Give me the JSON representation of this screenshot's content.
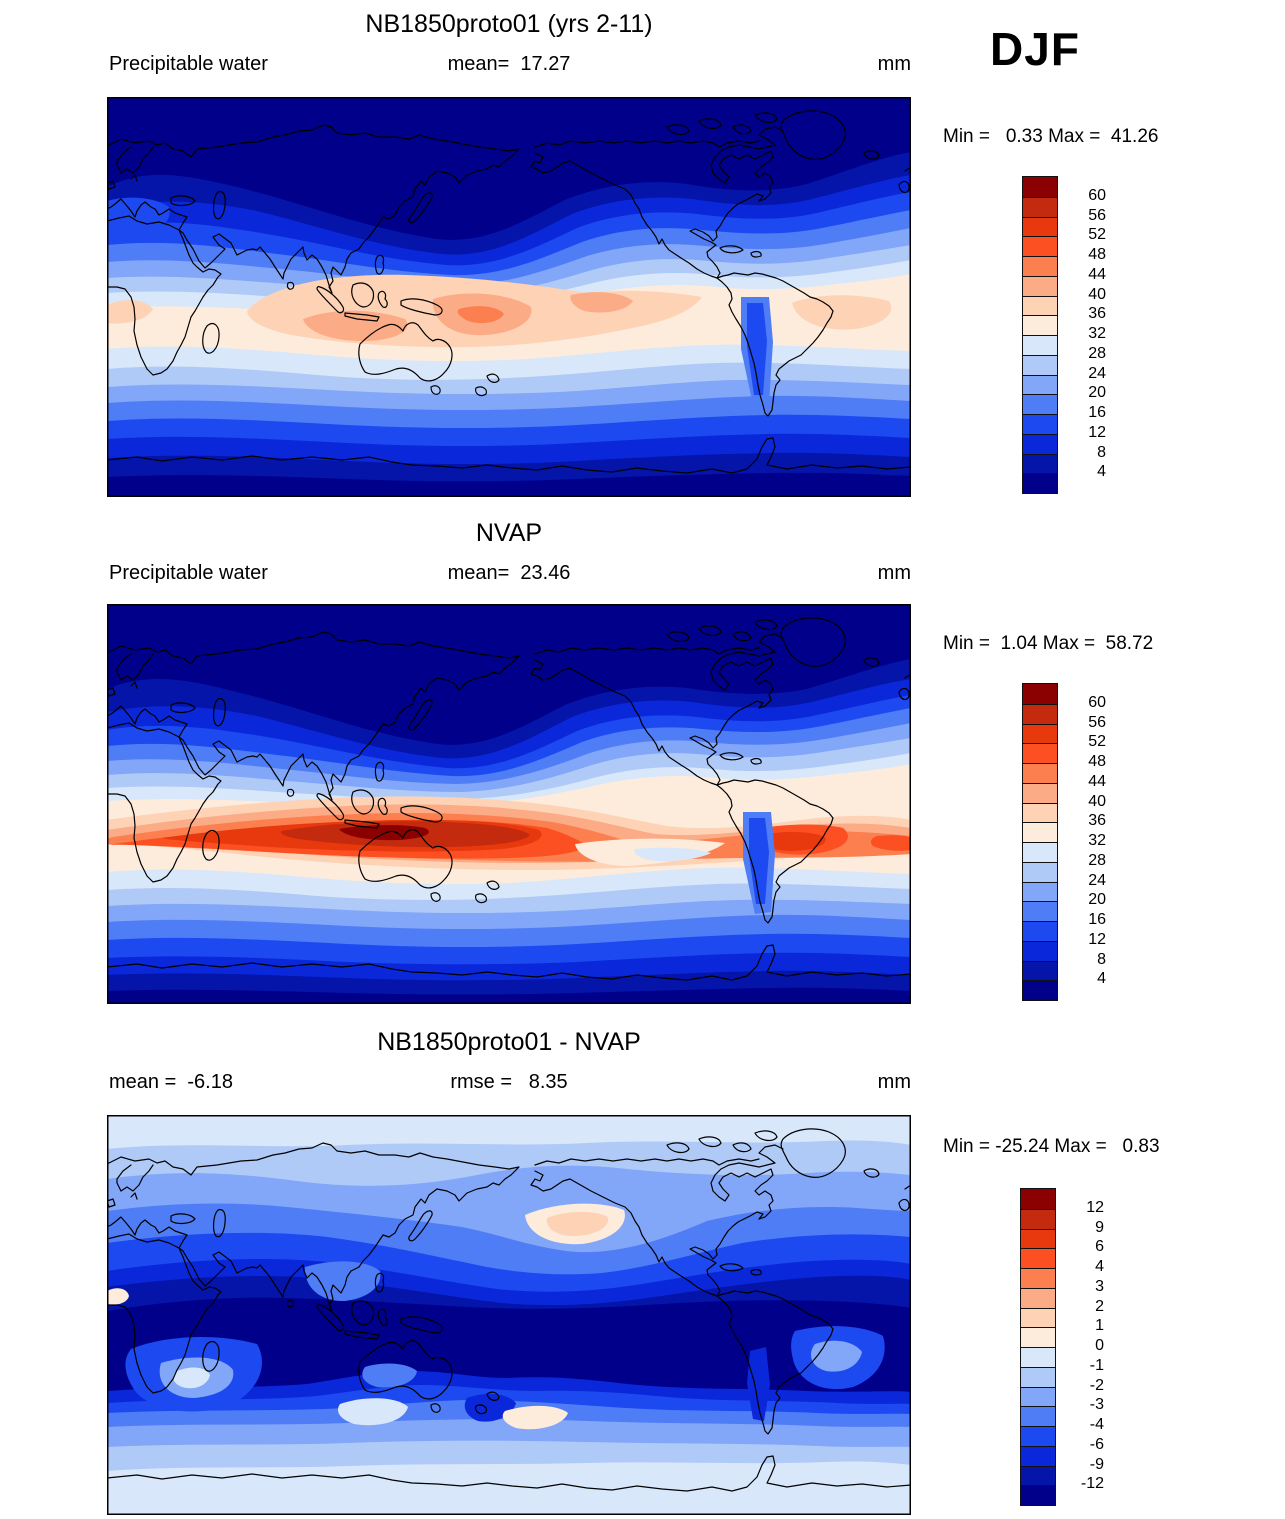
{
  "page": {
    "season": "DJF",
    "units": "mm"
  },
  "panels": [
    {
      "title": "NB1850proto01 (yrs 2-11)",
      "left_label": "Precipitable water",
      "center_label": "mean=  17.27",
      "unit_label": "mm",
      "minmax": "Min =   0.33 Max =  41.26"
    },
    {
      "title": "NVAP",
      "left_label": "Precipitable water",
      "center_label": "mean=  23.46",
      "unit_label": "mm",
      "minmax": "Min =  1.04 Max =  58.72"
    },
    {
      "title": "NB1850proto01 - NVAP",
      "left_label": "mean =  -6.18",
      "center_label": "rmse =   8.35",
      "unit_label": "mm",
      "minmax": "Min = -25.24 Max =   0.83"
    }
  ],
  "palette": {
    "colors": [
      "#8B0000",
      "#C42A0E",
      "#E8380E",
      "#FC4F22",
      "#FC7F50",
      "#FBAB85",
      "#FDD2B5",
      "#FDEBDC",
      "#D8E8FA",
      "#B0CAF8",
      "#82A6F8",
      "#4F7DF5",
      "#1D49F0",
      "#0A28DA",
      "#0515AA",
      "#00008B"
    ],
    "coastline_color": "#000000"
  },
  "colorbars": [
    {
      "labels": [
        "60",
        "56",
        "52",
        "48",
        "44",
        "40",
        "36",
        "32",
        "28",
        "24",
        "20",
        "16",
        "12",
        "8",
        "4"
      ]
    },
    {
      "labels": [
        "60",
        "56",
        "52",
        "48",
        "44",
        "40",
        "36",
        "32",
        "28",
        "24",
        "20",
        "16",
        "12",
        "8",
        "4"
      ]
    },
    {
      "labels": [
        "12",
        "9",
        "6",
        "4",
        "3",
        "2",
        "1",
        "0",
        "-1",
        "-2",
        "-3",
        "-4",
        "-6",
        "-9",
        "-12"
      ]
    }
  ],
  "chart_data": [
    {
      "type": "heatmap",
      "panel": "top",
      "title": "NB1850proto01 (yrs 2-11)",
      "variable": "Precipitable water",
      "units": "mm",
      "season": "DJF",
      "stats": {
        "mean": 17.27,
        "min": 0.33,
        "max": 41.26
      },
      "colorbar_levels": [
        60,
        56,
        52,
        48,
        44,
        40,
        36,
        32,
        28,
        24,
        20,
        16,
        12,
        8,
        4
      ],
      "legend_position": "right",
      "projection": "global equirectangular, 0-360E, 90N top",
      "description": "Model precipitable water: dry (<8 mm, dark blue) polar caps and winter continents; moist band (28-40 mm, cream/peach) along the tropics, peaking near Indonesia and the SW Pacific."
    },
    {
      "type": "heatmap",
      "panel": "middle",
      "title": "NVAP",
      "variable": "Precipitable water",
      "units": "mm",
      "season": "DJF",
      "stats": {
        "mean": 23.46,
        "min": 1.04,
        "max": 58.72
      },
      "colorbar_levels": [
        60,
        56,
        52,
        48,
        44,
        40,
        36,
        32,
        28,
        24,
        20,
        16,
        12,
        8,
        4
      ],
      "legend_position": "right",
      "projection": "global equirectangular, 0-360E, 90N top",
      "description": "NVAP observed precipitable water: intense moist tropical band (44-58 mm, orange/red) across the Indian Ocean, Maritime Continent, west Pacific warm pool and Amazon; dry poles."
    },
    {
      "type": "heatmap",
      "panel": "bottom",
      "title": "NB1850proto01 - NVAP",
      "variable": "Precipitable water difference",
      "units": "mm",
      "season": "DJF",
      "stats": {
        "mean": -6.18,
        "rmse": 8.35,
        "min": -25.24,
        "max": 0.83
      },
      "colorbar_levels": [
        12,
        9,
        6,
        4,
        3,
        2,
        1,
        0,
        -1,
        -2,
        -3,
        -4,
        -6,
        -9,
        -12
      ],
      "legend_position": "right",
      "projection": "global equirectangular, 0-360E, 90N top",
      "description": "Model minus observations: widespread dry bias, strongest (below -9 mm, dark navy) across the tropics; near-zero to slightly positive (pale/peach) at high latitudes and over the NW Pacific."
    }
  ]
}
